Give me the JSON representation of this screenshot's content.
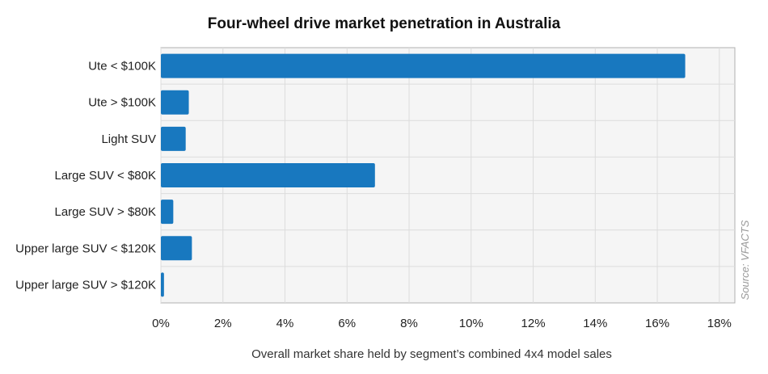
{
  "chart_data": {
    "type": "bar",
    "orientation": "horizontal",
    "title": "Four-wheel drive market penetration in Australia",
    "xlabel": "Overall market share held by segment’s combined 4x4 model sales",
    "ylabel": "",
    "categories": [
      "Ute < $100K",
      "Ute > $100K",
      "Light SUV",
      "Large SUV < $80K",
      "Large SUV > $80K",
      "Upper large SUV < $120K",
      "Upper large SUV > $120K"
    ],
    "values": [
      16.9,
      0.9,
      0.8,
      6.9,
      0.4,
      1.0,
      0.1
    ],
    "xlim": [
      0,
      18.5
    ],
    "x_ticks": [
      0,
      2,
      4,
      6,
      8,
      10,
      12,
      14,
      16,
      18
    ],
    "x_tick_labels": [
      "0%",
      "2%",
      "4%",
      "6%",
      "8%",
      "10%",
      "12%",
      "14%",
      "16%",
      "18%"
    ],
    "grid": true,
    "source_note": "Source: VFACTS",
    "colors": {
      "bar": "#1878bf",
      "plot_background": "#f5f5f5",
      "grid": "#dcdcdc",
      "frame": "#b0b0b0"
    }
  }
}
